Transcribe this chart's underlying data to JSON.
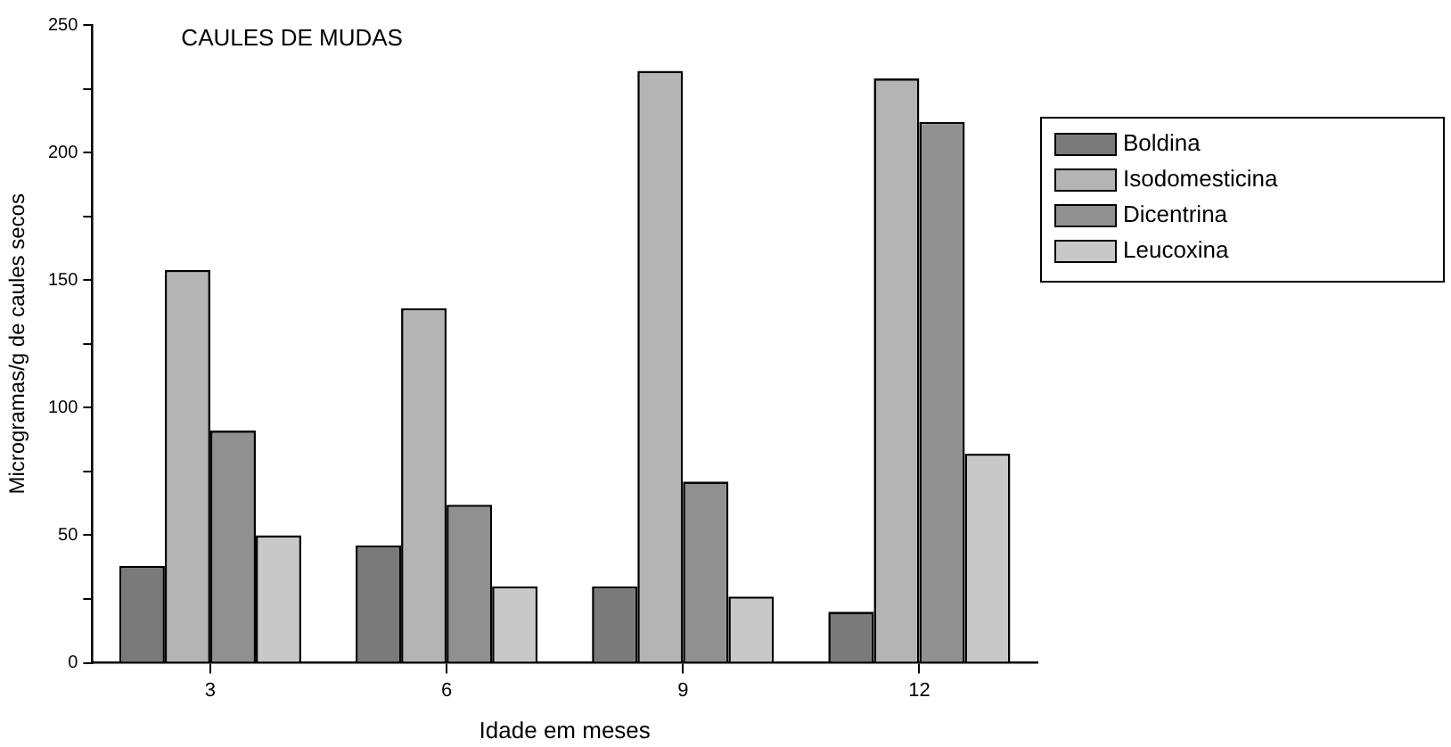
{
  "chart_data": {
    "type": "bar",
    "title": "CAULES DE MUDAS",
    "xlabel": "Idade em meses",
    "ylabel": "Microgramas/g de caules secos",
    "categories": [
      "3",
      "6",
      "9",
      "12"
    ],
    "series": [
      {
        "name": "Boldina",
        "color": "#7a7a7a",
        "values": [
          38,
          46,
          30,
          20
        ]
      },
      {
        "name": "Isodomesticina",
        "color": "#b4b4b4",
        "values": [
          154,
          139,
          232,
          229
        ]
      },
      {
        "name": "Dicentrina",
        "color": "#909090",
        "values": [
          91,
          62,
          71,
          212
        ]
      },
      {
        "name": "Leucoxina",
        "color": "#c8c8c8",
        "values": [
          50,
          30,
          26,
          82
        ]
      }
    ],
    "ylim": [
      0,
      250
    ],
    "yticks": [
      0,
      {
        "value": 25,
        "label": null
      },
      50,
      {
        "value": 75,
        "label": null
      },
      100,
      {
        "value": 125,
        "label": null
      },
      150,
      {
        "value": 175,
        "label": null
      },
      200,
      {
        "value": 225,
        "label": null
      },
      250
    ],
    "grid": false,
    "legend": "right"
  }
}
